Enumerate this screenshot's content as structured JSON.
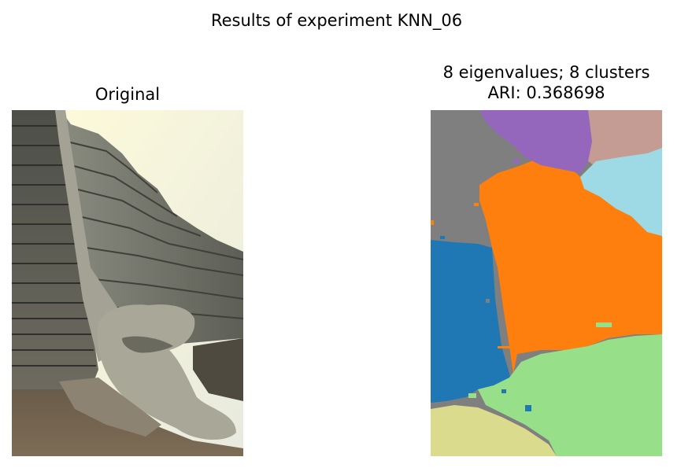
{
  "figure": {
    "suptitle": "Results of experiment KNN_06"
  },
  "left_panel": {
    "title": "Original",
    "image_subject": "stepped stone pyramid with carved serpent head at base of staircase",
    "colors": {
      "sky": "#fbf8d8",
      "stone_dark": "#55574f",
      "stone_mid": "#7d7f74",
      "stone_light": "#a5a496",
      "ground": "#6e5f4c"
    }
  },
  "right_panel": {
    "title_line1": "8 eigenvalues; 8 clusters",
    "title_line2": "ARI: 0.368698",
    "clusters": [
      {
        "id": 0,
        "color": "#1f77b4"
      },
      {
        "id": 1,
        "color": "#ff7f0e"
      },
      {
        "id": 2,
        "color": "#7f7f7f"
      },
      {
        "id": 3,
        "color": "#9467bd"
      },
      {
        "id": 4,
        "color": "#c49c94"
      },
      {
        "id": 5,
        "color": "#9edae5"
      },
      {
        "id": 6,
        "color": "#98df8a"
      },
      {
        "id": 7,
        "color": "#dbdb8d"
      }
    ]
  }
}
